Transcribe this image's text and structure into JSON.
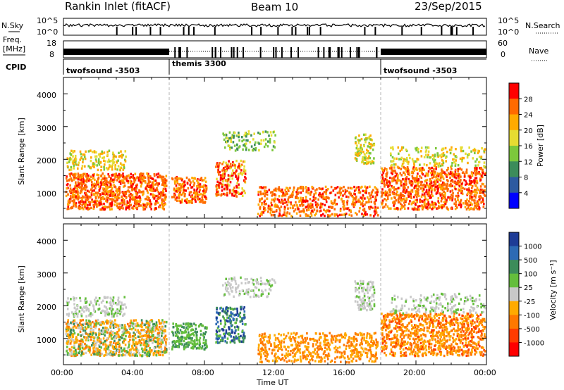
{
  "header": {
    "station": "Rankin Inlet (fitACF)",
    "beam": "Beam 10",
    "date": "23/Sep/2015"
  },
  "chart_data": [
    {
      "type": "line",
      "panel": "noise",
      "left_labels": [
        "N.Sky",
        "10^5",
        "10^0"
      ],
      "right_labels": [
        "N.Search",
        "10^5",
        "10^0"
      ]
    },
    {
      "type": "bar",
      "panel": "frequency-nave",
      "left_label": [
        "Freq.",
        "[MHz]"
      ],
      "left_ticks": [
        "18",
        "8"
      ],
      "right_label": "Nave",
      "right_ticks": [
        "60",
        "0"
      ]
    },
    {
      "type": "table",
      "panel": "cpid",
      "label": "CPID",
      "segments": [
        {
          "name": "twofsound -3503",
          "start_h": 0,
          "end_h": 6
        },
        {
          "name": "themis 3300",
          "start_h": 6,
          "end_h": 18
        },
        {
          "name": "twofsound -3503",
          "start_h": 18,
          "end_h": 24
        }
      ]
    },
    {
      "type": "heatmap",
      "panel": "power",
      "ylabel": "Slant Range [km]",
      "yticks": [
        "4000",
        "3000",
        "2000",
        "1000"
      ],
      "ylim": [
        200,
        4500
      ],
      "colorbar_label": "Power [dB]",
      "colorbar_ticks": [
        "28",
        "24",
        "20",
        "16",
        "12",
        "8",
        "4"
      ],
      "colors": [
        "#ff0000",
        "#ff6a00",
        "#ffaa00",
        "#e6dc32",
        "#7cc83c",
        "#3c8c5a",
        "#2d5aa0",
        "#0000ff"
      ]
    },
    {
      "type": "heatmap",
      "panel": "velocity",
      "ylabel": "Slant Range [km]",
      "yticks": [
        "4000",
        "3000",
        "2000",
        "1000"
      ],
      "ylim": [
        200,
        4500
      ],
      "colorbar_label": "Velocity [m s⁻¹]",
      "colorbar_ticks": [
        "1000",
        "500",
        "100",
        "25",
        "-25",
        "-100",
        "-500",
        "-1000"
      ],
      "colors": [
        "#1e3c96",
        "#2d6ab4",
        "#3c8c5a",
        "#64be3c",
        "#c8c8c8",
        "#ffaa00",
        "#ff7800",
        "#ff3c00",
        "#ff0000"
      ]
    }
  ],
  "time_axis": {
    "ticks": [
      "00:00",
      "04:00",
      "08:00",
      "12:00",
      "16:00",
      "20:00",
      "00:00"
    ],
    "label": "Time UT"
  }
}
